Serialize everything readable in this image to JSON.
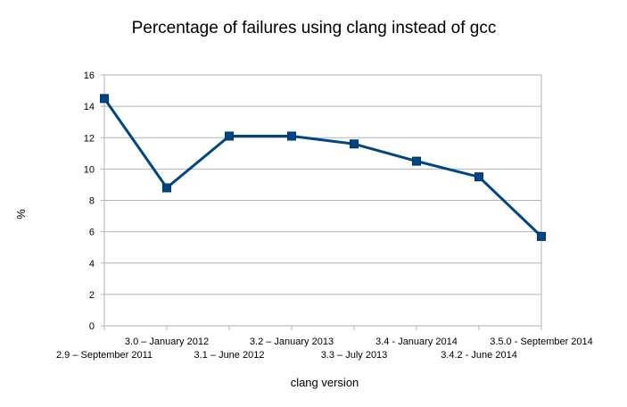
{
  "chart_data": {
    "type": "line",
    "title": "Percentage of failures using clang instead of gcc",
    "xlabel": "clang version",
    "ylabel": "%",
    "ylim": [
      0,
      16
    ],
    "yticks": [
      0,
      2,
      4,
      6,
      8,
      10,
      12,
      14,
      16
    ],
    "grid": true,
    "legend": "none",
    "categories": [
      "2.9 – September 2011",
      "3.0 – January 2012",
      "3.1 – June 2012",
      "3.2 – January 2013",
      "3.3 – July 2013",
      "3.4 - January 2014",
      "3.4.2 - June 2014",
      "3.5.0 - September 2014"
    ],
    "series": [
      {
        "values": [
          14.5,
          8.8,
          12.1,
          12.1,
          11.6,
          10.5,
          9.5,
          5.7
        ]
      }
    ],
    "line_color": "#004586",
    "marker": "square"
  }
}
